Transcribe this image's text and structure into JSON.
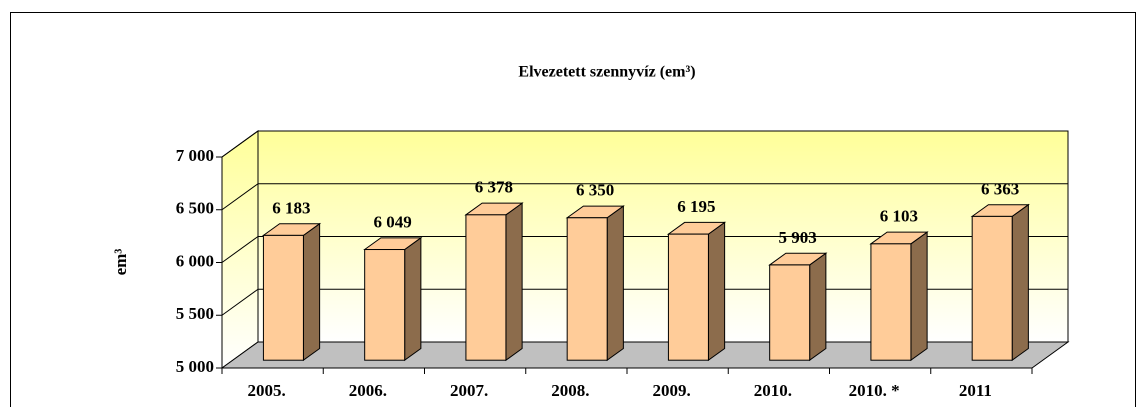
{
  "chart_data": {
    "type": "bar3d",
    "title": "Elvezetett szennyvíz (em³)",
    "y_label": "em³",
    "categories": [
      "2005.",
      "2006.",
      "2007.",
      "2008.",
      "2009.",
      "2010.",
      "2010. *",
      "2011"
    ],
    "values": [
      6183,
      6049,
      6378,
      6350,
      6195,
      5903,
      6103,
      6363
    ],
    "value_labels": [
      "6 183",
      "6 049",
      "6 378",
      "6 350",
      "6 195",
      "5 903",
      "6 103",
      "6 363"
    ],
    "color": "#ffcc99",
    "ylim": [
      5000,
      7000
    ],
    "yticks": [
      {
        "value": 5000,
        "label": "5 000"
      },
      {
        "value": 5500,
        "label": "5 500"
      },
      {
        "value": 6000,
        "label": "6 000"
      },
      {
        "value": 6500,
        "label": "6 500"
      },
      {
        "value": 7000,
        "label": "7 000"
      }
    ],
    "grid": true
  }
}
